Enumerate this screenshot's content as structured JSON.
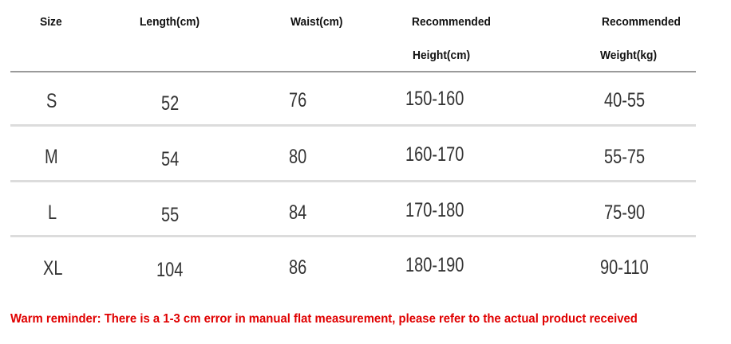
{
  "headers": [
    {
      "line1": "Size",
      "line2": ""
    },
    {
      "line1": "Length(cm)",
      "line2": ""
    },
    {
      "line1": "Waist(cm)",
      "line2": ""
    },
    {
      "line1": "Recommended",
      "line2": "Height(cm)"
    },
    {
      "line1": "Recommended",
      "line2": "Weight(kg)"
    }
  ],
  "rows": [
    [
      "S",
      "52",
      "76",
      "150-160",
      "40-55"
    ],
    [
      "M",
      "54",
      "80",
      "160-170",
      "55-75"
    ],
    [
      "L",
      "55",
      "84",
      "170-180",
      "75-90"
    ],
    [
      "XL",
      "104",
      "86",
      "180-190",
      "90-110"
    ]
  ],
  "note": "Warm reminder: There is a 1-3 cm error in manual flat measurement, please refer to the actual product received",
  "colors": {
    "note": "#e00000"
  }
}
